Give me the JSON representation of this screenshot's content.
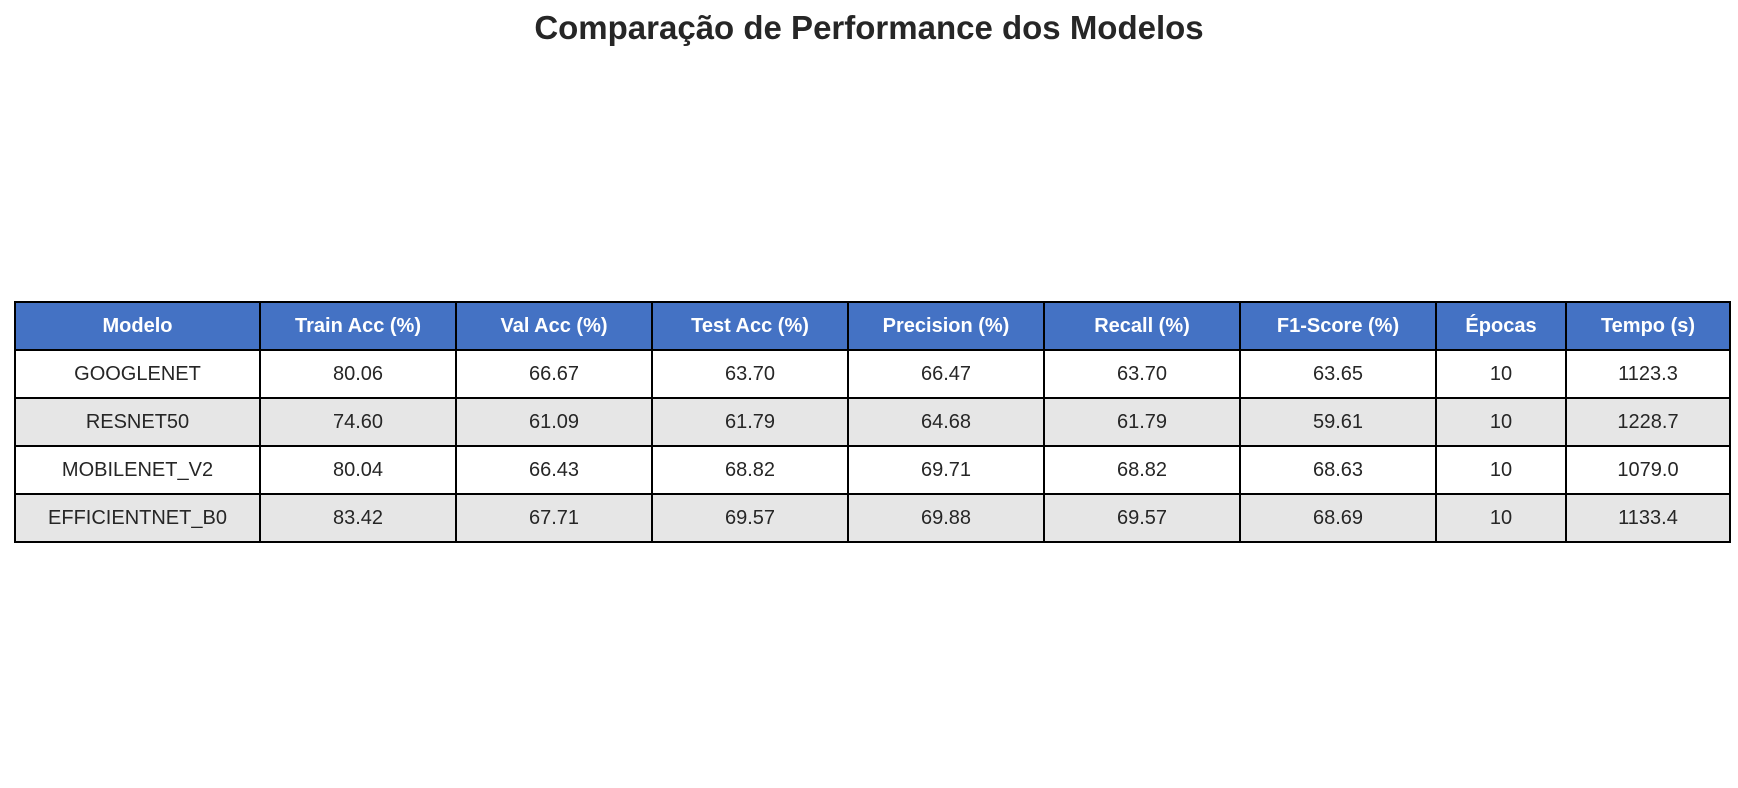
{
  "chart_data": {
    "type": "table",
    "title": "Comparação de Performance dos Modelos",
    "header_color": "#4472c4",
    "row_colors": [
      "#ffffff",
      "#e6e6e6"
    ],
    "columns": [
      "Modelo",
      "Train Acc (%)",
      "Val Acc (%)",
      "Test Acc (%)",
      "Precision (%)",
      "Recall (%)",
      "F1-Score (%)",
      "Épocas",
      "Tempo (s)"
    ],
    "rows": [
      [
        "GOOGLENET",
        "80.06",
        "66.67",
        "63.70",
        "66.47",
        "63.70",
        "63.65",
        "10",
        "1123.3"
      ],
      [
        "RESNET50",
        "74.60",
        "61.09",
        "61.79",
        "64.68",
        "61.79",
        "59.61",
        "10",
        "1228.7"
      ],
      [
        "MOBILENET_V2",
        "80.04",
        "66.43",
        "68.82",
        "69.71",
        "68.82",
        "68.63",
        "10",
        "1079.0"
      ],
      [
        "EFFICIENTNET_B0",
        "83.42",
        "67.71",
        "69.57",
        "69.88",
        "69.57",
        "68.69",
        "10",
        "1133.4"
      ]
    ]
  }
}
